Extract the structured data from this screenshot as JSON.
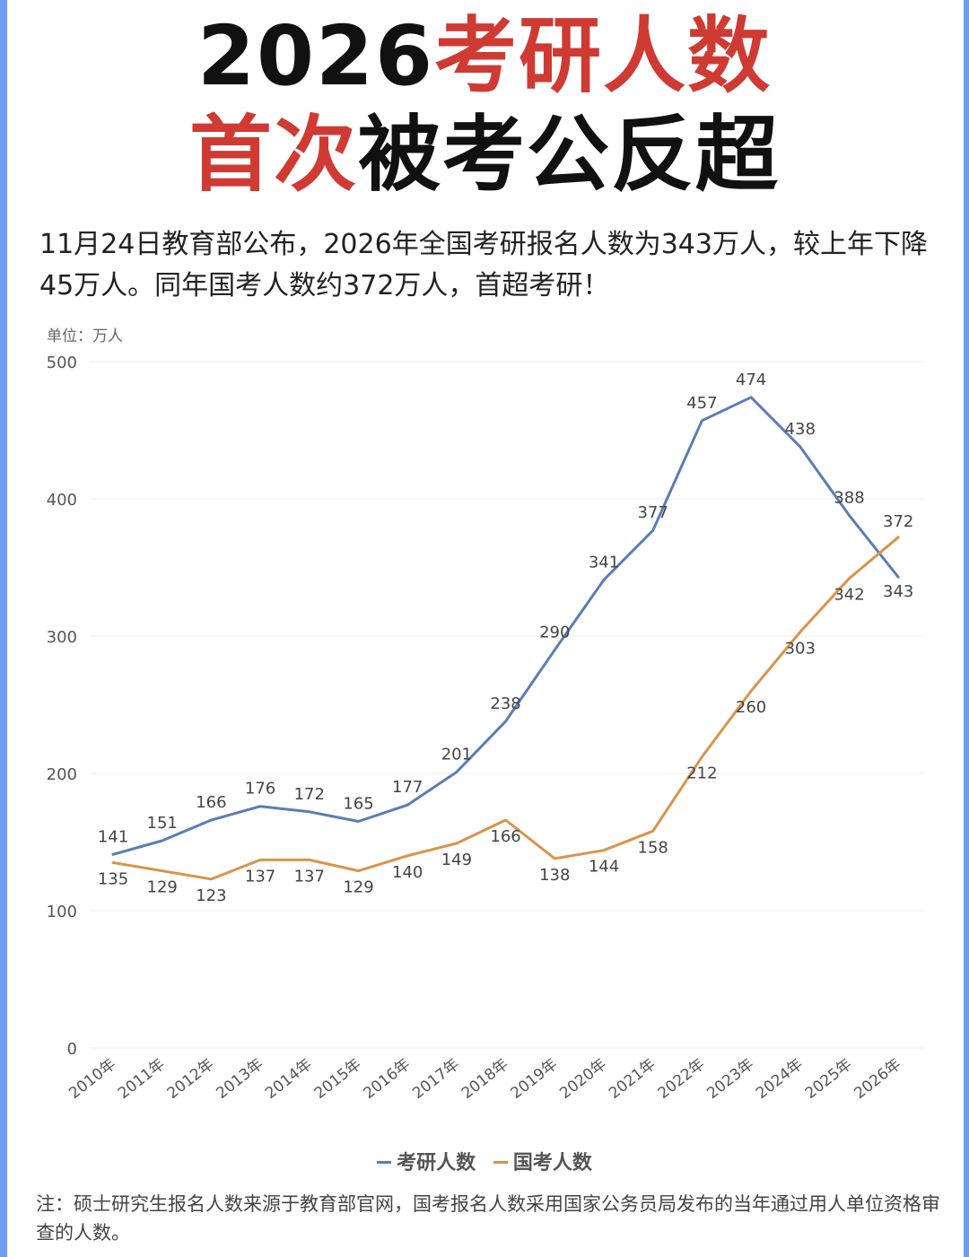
{
  "headline": {
    "line1_black": "2026",
    "line1_red": "考研人数",
    "line2_red": "首次",
    "line2_black": "被考公反超"
  },
  "lead_text": "11月24日教育部公布，2026年全国考研报名人数为343万人，较上年下降45万人。同年国考人数约372万人，首超考研！",
  "unit_label": "单位：万人",
  "colors": {
    "accent_red": "#cf3a33",
    "frame_blue": "#6f9ef0",
    "kaoyan_line": "#5a7db5",
    "guokao_line": "#d9944a"
  },
  "chart_data": {
    "type": "line",
    "categories": [
      "2010年",
      "2011年",
      "2012年",
      "2013年",
      "2014年",
      "2015年",
      "2016年",
      "2017年",
      "2018年",
      "2019年",
      "2020年",
      "2021年",
      "2022年",
      "2023年",
      "2024年",
      "2025年",
      "2026年"
    ],
    "series": [
      {
        "name": "考研人数",
        "values": [
          141,
          151,
          166,
          176,
          172,
          165,
          177,
          201,
          238,
          290,
          341,
          377,
          457,
          474,
          438,
          388,
          343
        ]
      },
      {
        "name": "国考人数",
        "values": [
          135,
          129,
          123,
          137,
          137,
          129,
          140,
          149,
          166,
          138,
          144,
          158,
          212,
          260,
          303,
          342,
          372
        ]
      }
    ],
    "yticks": [
      0,
      100,
      200,
      300,
      400,
      500
    ],
    "ylim": [
      0,
      500
    ],
    "legend_position": "bottom-center",
    "grid": true
  },
  "note": "注：硕士研究生报名人数来源于教育部官网，国考报名人数采用国家公务员局发布的当年通过用人单位资格审查的人数。"
}
